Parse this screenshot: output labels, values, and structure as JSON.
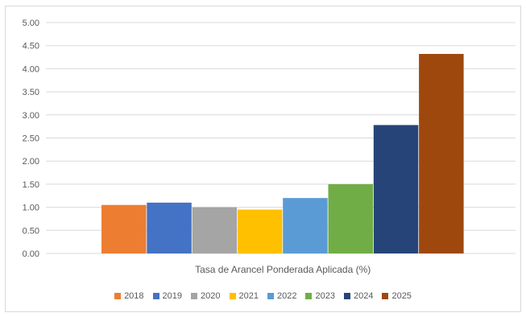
{
  "chart_data": {
    "type": "bar",
    "categories": [
      "Tasa de Arancel Ponderada Aplicada (%)"
    ],
    "series": [
      {
        "name": "2018",
        "values": [
          1.05
        ],
        "color": "#ED7D31"
      },
      {
        "name": "2019",
        "values": [
          1.1
        ],
        "color": "#4472C4"
      },
      {
        "name": "2020",
        "values": [
          1.0
        ],
        "color": "#A5A5A5"
      },
      {
        "name": "2021",
        "values": [
          0.95
        ],
        "color": "#FFC000"
      },
      {
        "name": "2022",
        "values": [
          1.2
        ],
        "color": "#5B9BD5"
      },
      {
        "name": "2023",
        "values": [
          1.5
        ],
        "color": "#70AD47"
      },
      {
        "name": "2024",
        "values": [
          2.78
        ],
        "color": "#264478"
      },
      {
        "name": "2025",
        "values": [
          4.32
        ],
        "color": "#9E480E"
      }
    ],
    "ylim": [
      0,
      5
    ],
    "yticks": [
      "0.00",
      "0.50",
      "1.00",
      "1.50",
      "2.00",
      "2.50",
      "3.00",
      "3.50",
      "4.00",
      "4.50",
      "5.00"
    ],
    "grid": true,
    "legend": "bottom",
    "title": "",
    "xlabel": "",
    "ylabel": ""
  }
}
